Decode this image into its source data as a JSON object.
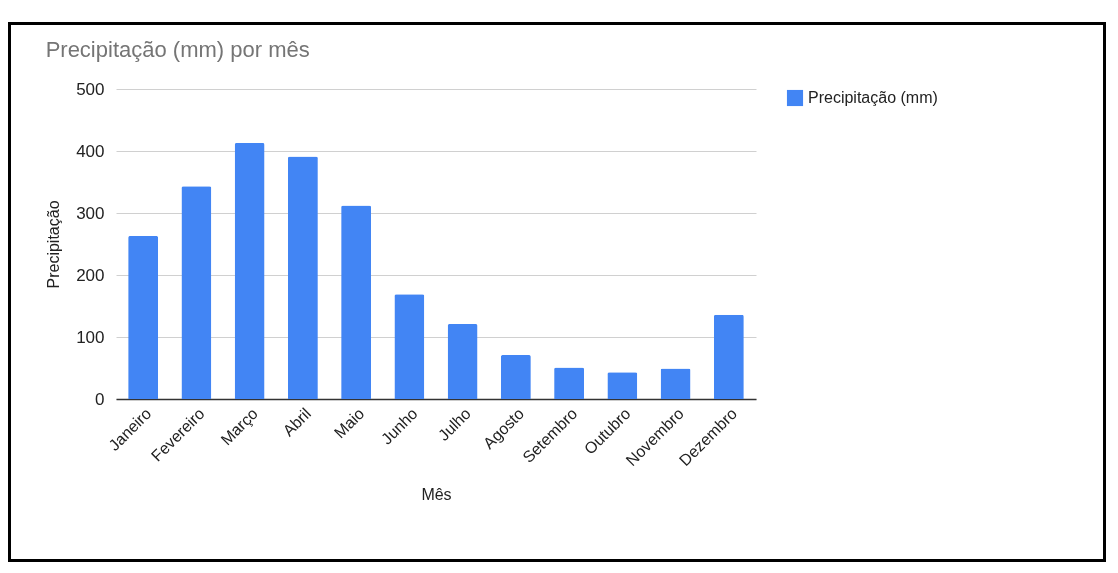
{
  "chart_data": {
    "type": "bar",
    "title": "Precipitação (mm) por mês",
    "xlabel": "Mês",
    "ylabel": "Precipitação",
    "categories": [
      "Janeiro",
      "Fevereiro",
      "Março",
      "Abril",
      "Maio",
      "Junho",
      "Julho",
      "Agosto",
      "Setembro",
      "Outubro",
      "Novembro",
      "Dezembro"
    ],
    "series": [
      {
        "name": "Precipitação (mm)",
        "color": "#4285f4",
        "values": [
          263,
          343,
          413,
          391,
          312,
          169,
          121,
          71,
          51,
          43,
          49,
          136
        ]
      }
    ],
    "ylim": [
      0,
      500
    ],
    "yticks": [
      0,
      100,
      200,
      300,
      400,
      500
    ],
    "grid": "y",
    "legend": "top right"
  }
}
